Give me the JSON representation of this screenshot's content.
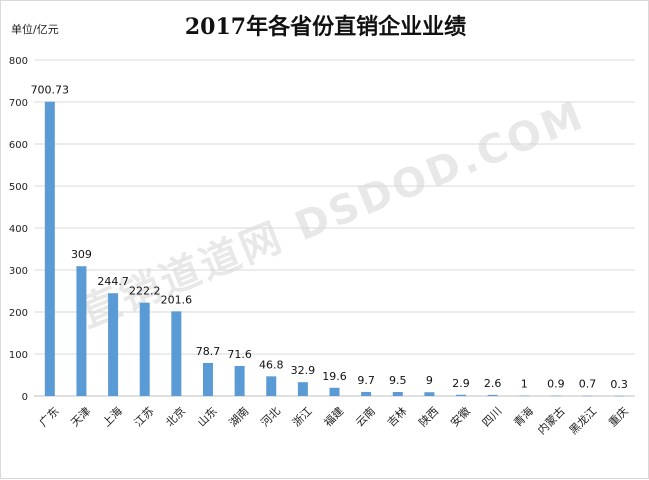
{
  "chart_data": {
    "type": "bar",
    "title": "2017年各省份直销企业业绩",
    "unit_label": "单位/亿元",
    "watermark": "直销道道网 DSDOD.COM",
    "categories": [
      "广东",
      "天津",
      "上海",
      "江苏",
      "北京",
      "山东",
      "湖南",
      "河北",
      "浙江",
      "福建",
      "云南",
      "吉林",
      "陕西",
      "安徽",
      "四川",
      "青海",
      "内蒙古",
      "黑龙江",
      "重庆"
    ],
    "values": [
      700.73,
      309,
      244.7,
      222.2,
      201.6,
      78.7,
      71.6,
      46.8,
      32.9,
      19.6,
      9.7,
      9.5,
      9,
      2.9,
      2.6,
      1,
      0.9,
      0.7,
      0.3
    ],
    "value_labels": [
      "700.73",
      "309",
      "244.7",
      "222.2",
      "201.6",
      "78.7",
      "71.6",
      "46.8",
      "32.9",
      "19.6",
      "9.7",
      "9.5",
      "9",
      "2.9",
      "2.6",
      "1",
      "0.9",
      "0.7",
      "0.3"
    ],
    "ylim": [
      0,
      800
    ],
    "yticks": [
      0,
      100,
      200,
      300,
      400,
      500,
      600,
      700,
      800
    ],
    "xlabel": "",
    "ylabel": "",
    "grid": true,
    "bar_color": "#5b9bd5"
  }
}
